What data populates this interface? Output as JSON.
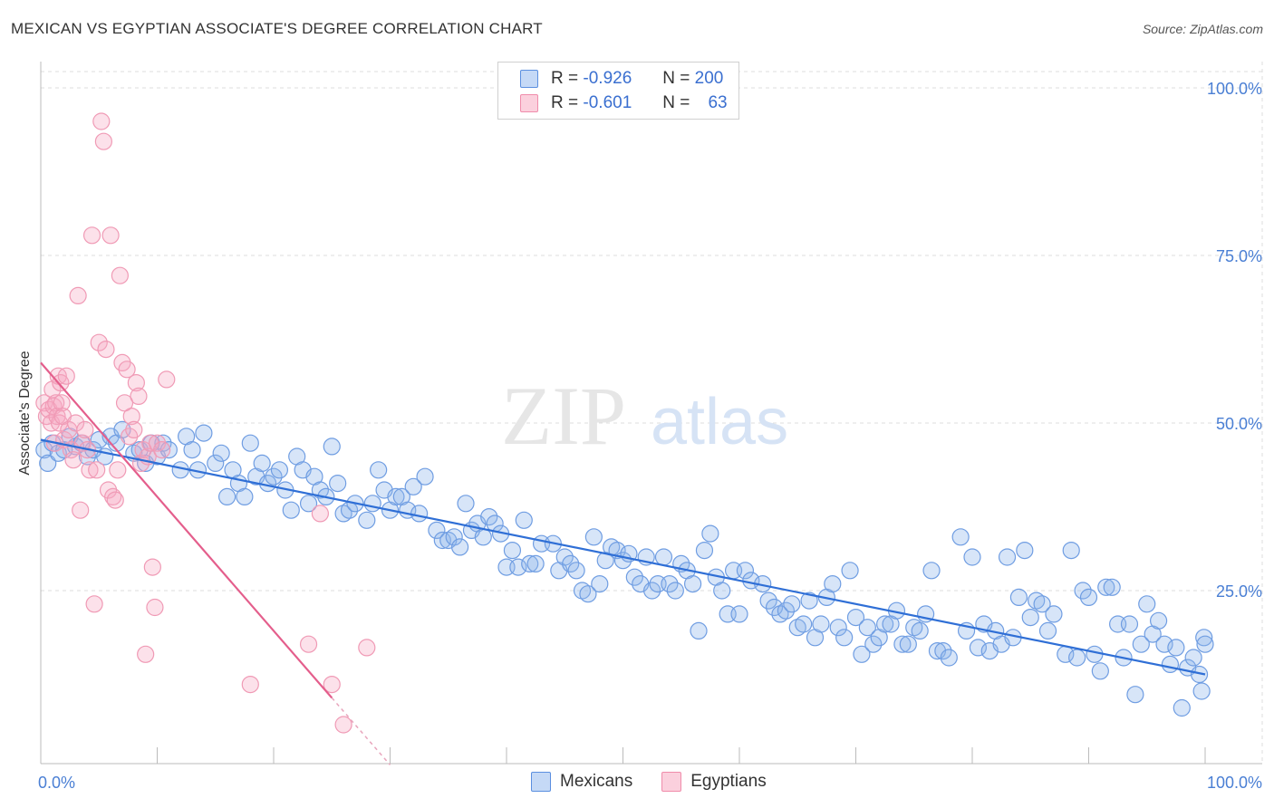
{
  "header": {
    "title": "MEXICAN VS EGYPTIAN ASSOCIATE'S DEGREE CORRELATION CHART",
    "source": "Source: ZipAtlas.com"
  },
  "watermark": {
    "zip": "ZIP",
    "atlas": "atlas"
  },
  "legend": {
    "mexicans": {
      "r_label": "R =",
      "r_value": "-0.926",
      "n_label": "N =",
      "n_value": "200",
      "color": "#5b8fe0"
    },
    "egyptians": {
      "r_label": "R =",
      "r_value": "-0.601",
      "n_label": "N =",
      "n_value": "63",
      "color": "#f08cab"
    }
  },
  "bottom_legend": [
    "Mexicans",
    "Egyptians"
  ],
  "chart_data": {
    "type": "scatter",
    "title": "MEXICAN VS EGYPTIAN ASSOCIATE'S DEGREE CORRELATION CHART",
    "xlabel": "",
    "ylabel": "Associate's Degree",
    "xlim": [
      0,
      100
    ],
    "ylim": [
      0,
      100
    ],
    "x_tick_labels": [
      "0.0%",
      "100.0%"
    ],
    "y_tick_labels": [
      "100.0%",
      "75.0%",
      "50.0%",
      "25.0%"
    ],
    "y_tick_values": [
      100,
      75,
      50,
      25
    ],
    "series": [
      {
        "name": "Mexicans",
        "color": "#5b8fe0",
        "trend": {
          "x": [
            0,
            100
          ],
          "y": [
            47.5,
            12.5
          ]
        },
        "points": [
          [
            0.3,
            46
          ],
          [
            0.6,
            44
          ],
          [
            1,
            47
          ],
          [
            1.5,
            45.5
          ],
          [
            2,
            46
          ],
          [
            2.5,
            48
          ],
          [
            3,
            46.5
          ],
          [
            3.5,
            47
          ],
          [
            4,
            45
          ],
          [
            4.5,
            46
          ],
          [
            5,
            47.5
          ],
          [
            5.5,
            45
          ],
          [
            6,
            48
          ],
          [
            6.5,
            47
          ],
          [
            7,
            49
          ],
          [
            8,
            45.5
          ],
          [
            8.5,
            46
          ],
          [
            9,
            44
          ],
          [
            9.5,
            47
          ],
          [
            10,
            45
          ],
          [
            10.5,
            47
          ],
          [
            11,
            46
          ],
          [
            12,
            43
          ],
          [
            12.5,
            48
          ],
          [
            13,
            46
          ],
          [
            13.5,
            43
          ],
          [
            14,
            48.5
          ],
          [
            15,
            44
          ],
          [
            15.5,
            45.5
          ],
          [
            16,
            39
          ],
          [
            16.5,
            43
          ],
          [
            17,
            41
          ],
          [
            17.5,
            39
          ],
          [
            18,
            47
          ],
          [
            18.5,
            42
          ],
          [
            19,
            44
          ],
          [
            19.5,
            41
          ],
          [
            20,
            42
          ],
          [
            20.5,
            43
          ],
          [
            21,
            40
          ],
          [
            21.5,
            37
          ],
          [
            22,
            45
          ],
          [
            22.5,
            43
          ],
          [
            23,
            38
          ],
          [
            23.5,
            42
          ],
          [
            24,
            40
          ],
          [
            24.5,
            39
          ],
          [
            25,
            46.5
          ],
          [
            25.5,
            41
          ],
          [
            26,
            36.5
          ],
          [
            26.5,
            37
          ],
          [
            27,
            38
          ],
          [
            28,
            35.5
          ],
          [
            28.5,
            38
          ],
          [
            29,
            43
          ],
          [
            29.5,
            40
          ],
          [
            30,
            37
          ],
          [
            30.5,
            39
          ],
          [
            31,
            39
          ],
          [
            31.5,
            37
          ],
          [
            32,
            40.5
          ],
          [
            32.5,
            36.5
          ],
          [
            33,
            42
          ],
          [
            34,
            34
          ],
          [
            34.5,
            32.5
          ],
          [
            35,
            32.5
          ],
          [
            35.5,
            33
          ],
          [
            36,
            31.5
          ],
          [
            36.5,
            38
          ],
          [
            37,
            34
          ],
          [
            37.5,
            35
          ],
          [
            38,
            33
          ],
          [
            38.5,
            36
          ],
          [
            39,
            35
          ],
          [
            39.5,
            33.5
          ],
          [
            40,
            28.5
          ],
          [
            40.5,
            31
          ],
          [
            41,
            28.5
          ],
          [
            41.5,
            35.5
          ],
          [
            42,
            29
          ],
          [
            42.5,
            29
          ],
          [
            43,
            32
          ],
          [
            44,
            32
          ],
          [
            44.5,
            28
          ],
          [
            45,
            30
          ],
          [
            45.5,
            29
          ],
          [
            46,
            28
          ],
          [
            46.5,
            25
          ],
          [
            47,
            24.5
          ],
          [
            47.5,
            33
          ],
          [
            48,
            26
          ],
          [
            48.5,
            29.5
          ],
          [
            49,
            31.5
          ],
          [
            49.5,
            31
          ],
          [
            50,
            29.5
          ],
          [
            50.5,
            30.5
          ],
          [
            51,
            27
          ],
          [
            51.5,
            26
          ],
          [
            52,
            30
          ],
          [
            52.5,
            25
          ],
          [
            53,
            26
          ],
          [
            53.5,
            30
          ],
          [
            54,
            26
          ],
          [
            54.5,
            25
          ],
          [
            55,
            29
          ],
          [
            55.5,
            28
          ],
          [
            56,
            26
          ],
          [
            56.5,
            19
          ],
          [
            57,
            31
          ],
          [
            57.5,
            33.5
          ],
          [
            58,
            27
          ],
          [
            58.5,
            25
          ],
          [
            59,
            21.5
          ],
          [
            59.5,
            28
          ],
          [
            60,
            21.5
          ],
          [
            60.5,
            28
          ],
          [
            61,
            26.5
          ],
          [
            62,
            26
          ],
          [
            62.5,
            23.5
          ],
          [
            63,
            22.5
          ],
          [
            63.5,
            21.5
          ],
          [
            64,
            22
          ],
          [
            64.5,
            23
          ],
          [
            65,
            19.5
          ],
          [
            65.5,
            20
          ],
          [
            66,
            23.5
          ],
          [
            66.5,
            18
          ],
          [
            67,
            20
          ],
          [
            67.5,
            24
          ],
          [
            68,
            26
          ],
          [
            68.5,
            19.5
          ],
          [
            69,
            18
          ],
          [
            69.5,
            28
          ],
          [
            70,
            21
          ],
          [
            70.5,
            15.5
          ],
          [
            71,
            19.5
          ],
          [
            71.5,
            17
          ],
          [
            72,
            18
          ],
          [
            72.5,
            20
          ],
          [
            73,
            20
          ],
          [
            73.5,
            22
          ],
          [
            74,
            17
          ],
          [
            74.5,
            17
          ],
          [
            75,
            19.5
          ],
          [
            75.5,
            19
          ],
          [
            76,
            21.5
          ],
          [
            76.5,
            28
          ],
          [
            77,
            16
          ],
          [
            77.5,
            16
          ],
          [
            78,
            15
          ],
          [
            79,
            33
          ],
          [
            79.5,
            19
          ],
          [
            80,
            30
          ],
          [
            80.5,
            16.5
          ],
          [
            81,
            20
          ],
          [
            81.5,
            16
          ],
          [
            82,
            19
          ],
          [
            82.5,
            17
          ],
          [
            83,
            30
          ],
          [
            83.5,
            18
          ],
          [
            84,
            24
          ],
          [
            84.5,
            31
          ],
          [
            85,
            21
          ],
          [
            85.5,
            23.5
          ],
          [
            86,
            23
          ],
          [
            86.5,
            19
          ],
          [
            87,
            21.5
          ],
          [
            88,
            15.5
          ],
          [
            88.5,
            31
          ],
          [
            89,
            15
          ],
          [
            89.5,
            25
          ],
          [
            90,
            24
          ],
          [
            90.5,
            15.5
          ],
          [
            91,
            13
          ],
          [
            91.5,
            25.5
          ],
          [
            92,
            25.5
          ],
          [
            92.5,
            20
          ],
          [
            93,
            15
          ],
          [
            93.5,
            20
          ],
          [
            94,
            9.5
          ],
          [
            94.5,
            17
          ],
          [
            95,
            23
          ],
          [
            95.5,
            18.5
          ],
          [
            96,
            20.5
          ],
          [
            96.5,
            17
          ],
          [
            97,
            14
          ],
          [
            97.5,
            16.5
          ],
          [
            98,
            7.5
          ],
          [
            98.5,
            13.5
          ],
          [
            99,
            15
          ],
          [
            99.5,
            12.5
          ],
          [
            99.7,
            10
          ],
          [
            99.9,
            18
          ],
          [
            100,
            17
          ]
        ]
      },
      {
        "name": "Egyptians",
        "color": "#f08cab",
        "trend": {
          "x": [
            0,
            25
          ],
          "y": [
            59,
            9
          ]
        },
        "trend_dashed": {
          "x": [
            25,
            30
          ],
          "y": [
            9,
            -1
          ]
        },
        "points": [
          [
            0.3,
            53
          ],
          [
            0.5,
            51
          ],
          [
            0.7,
            52
          ],
          [
            0.9,
            50
          ],
          [
            1,
            55
          ],
          [
            1.1,
            52.5
          ],
          [
            1.2,
            47
          ],
          [
            1.3,
            53
          ],
          [
            1.4,
            51
          ],
          [
            1.5,
            57
          ],
          [
            1.6,
            50
          ],
          [
            1.7,
            56
          ],
          [
            1.8,
            53
          ],
          [
            1.9,
            51
          ],
          [
            2,
            47.5
          ],
          [
            2.2,
            57
          ],
          [
            2.4,
            49
          ],
          [
            2.6,
            46
          ],
          [
            2.8,
            44.5
          ],
          [
            3,
            50
          ],
          [
            3.2,
            69
          ],
          [
            3.4,
            37
          ],
          [
            3.6,
            47
          ],
          [
            3.8,
            49
          ],
          [
            4,
            46
          ],
          [
            4.2,
            43
          ],
          [
            4.4,
            78
          ],
          [
            4.6,
            23
          ],
          [
            4.8,
            43
          ],
          [
            5,
            62
          ],
          [
            5.2,
            95
          ],
          [
            5.4,
            92
          ],
          [
            5.6,
            61
          ],
          [
            5.8,
            40
          ],
          [
            6,
            78
          ],
          [
            6.2,
            39
          ],
          [
            6.4,
            38.5
          ],
          [
            6.6,
            43
          ],
          [
            6.8,
            72
          ],
          [
            7,
            59
          ],
          [
            7.2,
            53
          ],
          [
            7.4,
            58
          ],
          [
            7.6,
            48
          ],
          [
            7.8,
            51
          ],
          [
            8,
            49
          ],
          [
            8.2,
            56
          ],
          [
            8.4,
            54
          ],
          [
            8.6,
            44
          ],
          [
            8.8,
            46
          ],
          [
            9,
            15.5
          ],
          [
            9.2,
            45
          ],
          [
            9.4,
            47
          ],
          [
            9.6,
            28.5
          ],
          [
            9.8,
            22.5
          ],
          [
            10,
            47
          ],
          [
            10.4,
            46
          ],
          [
            10.8,
            56.5
          ],
          [
            18,
            11
          ],
          [
            23,
            17
          ],
          [
            24,
            36.5
          ],
          [
            25,
            11
          ],
          [
            26,
            5
          ],
          [
            28,
            16.5
          ]
        ]
      }
    ]
  }
}
